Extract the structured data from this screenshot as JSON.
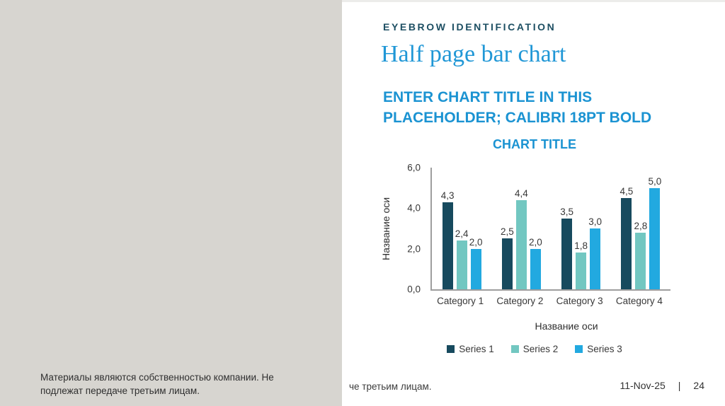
{
  "slide": {
    "eyebrow": "EYEBROW IDENTIFICATION",
    "headline": "Half page bar chart",
    "placeholder_title": "ENTER CHART TITLE IN THIS PLACEHOLDER; CALIBRI 18PT BOLD",
    "footer_fragment": "че третьим лицам.",
    "date": "11-Nov-25",
    "separator": "|",
    "page_number": "24"
  },
  "overlay": {
    "watermark": "Материалы являются собственностью компании. Не подлежат передаче третьим лицам."
  },
  "chart_data": {
    "type": "bar",
    "title": "CHART TITLE",
    "categories": [
      "Category 1",
      "Category 2",
      "Category 3",
      "Category 4"
    ],
    "series": [
      {
        "name": "Series 1",
        "color": "#174a5e",
        "values": [
          4.3,
          2.5,
          3.5,
          4.5
        ]
      },
      {
        "name": "Series 2",
        "color": "#72c7c1",
        "values": [
          2.4,
          4.4,
          1.8,
          2.8
        ]
      },
      {
        "name": "Series 3",
        "color": "#22a9e0",
        "values": [
          2.0,
          2.0,
          3.0,
          5.0
        ]
      }
    ],
    "xlabel": "Название оси",
    "ylabel": "Название оси",
    "yticks": [
      "0,0",
      "2,0",
      "4,0",
      "6,0"
    ],
    "ylim": [
      0,
      6
    ],
    "decimal_separator": ",",
    "grid": false,
    "legend_position": "bottom"
  },
  "colors": {
    "accent_blue": "#1b93d2",
    "headline_blue": "#2097d6",
    "eyebrow_navy": "#1d4f63",
    "overlay_gray": "#d7d5d0",
    "axis_gray": "#9e9e9e",
    "text_dark": "#383838"
  }
}
